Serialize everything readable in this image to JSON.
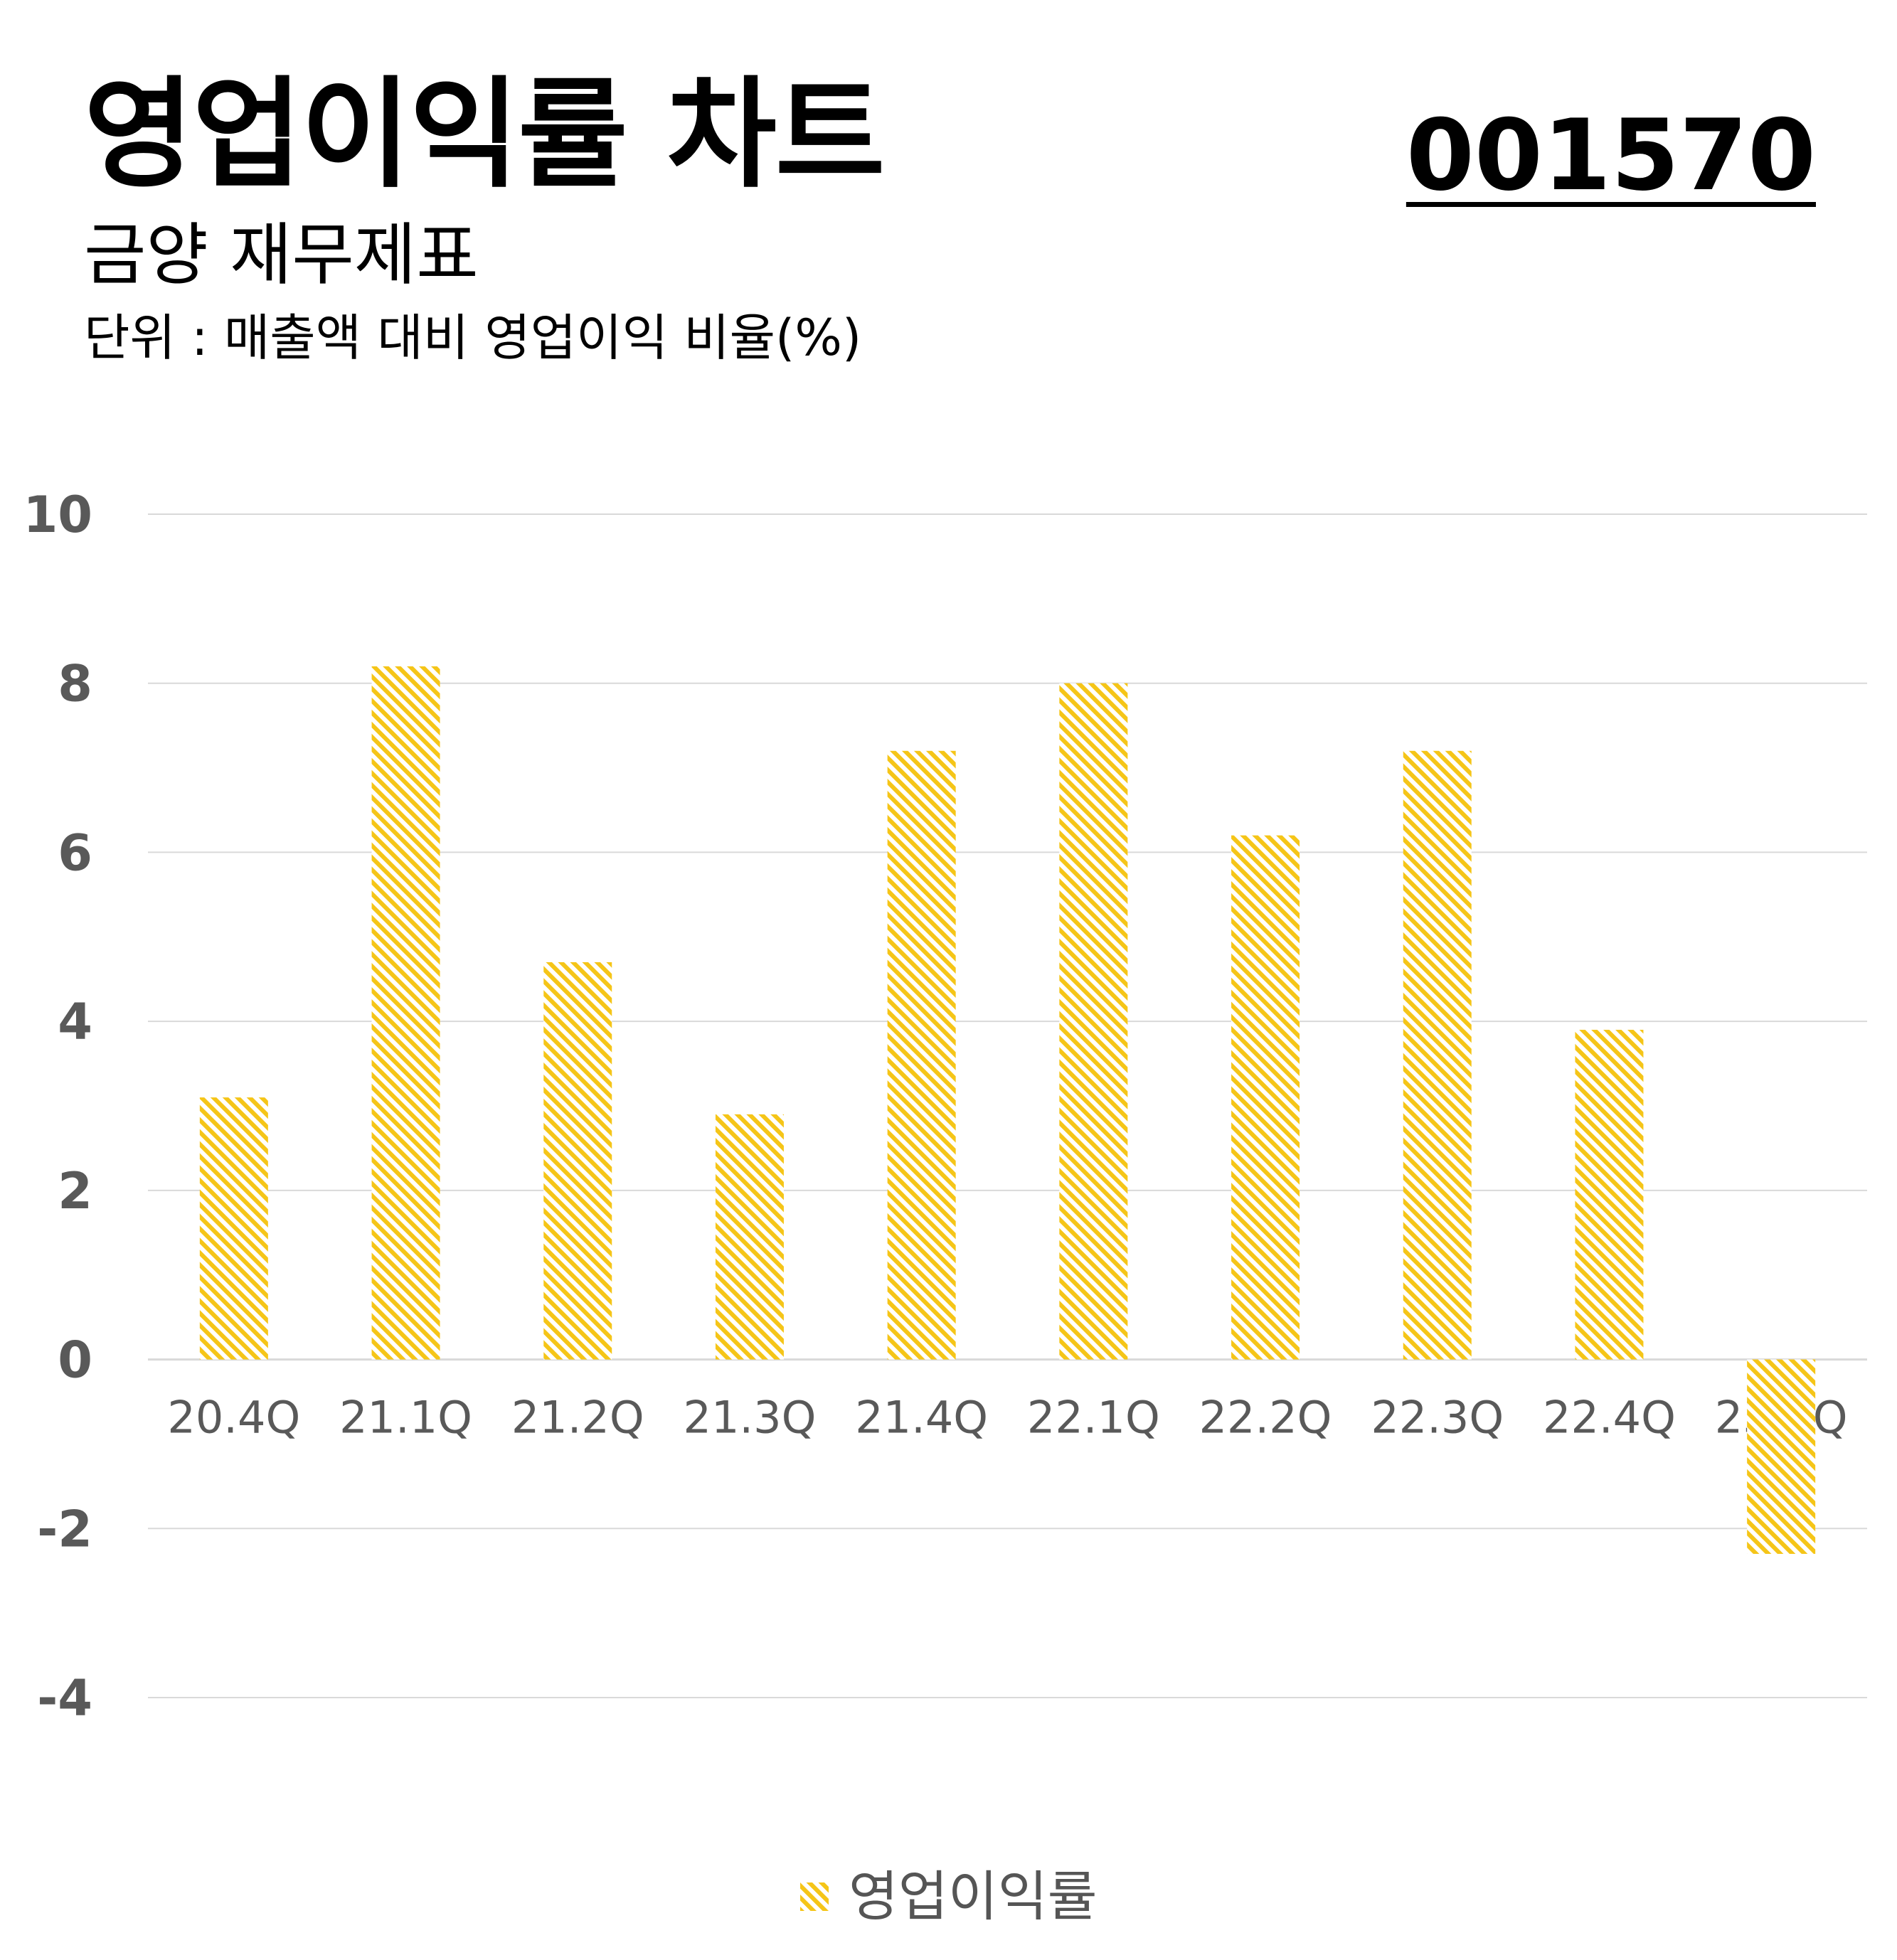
{
  "header": {
    "title": "영업이익률 차트",
    "code": "001570",
    "subtitle": "금양 재무제표",
    "unit": "단위 : 매출액 대비 영업이익 비율(%)"
  },
  "colors": {
    "bar": "#f5c518",
    "grid": "#d9d9d9",
    "tick_text": "#595959",
    "title_text": "#000000"
  },
  "chart_data": {
    "type": "bar",
    "categories": [
      "20.4Q",
      "21.1Q",
      "21.2Q",
      "21.3Q",
      "21.4Q",
      "22.1Q",
      "22.2Q",
      "22.3Q",
      "22.4Q",
      "23.1Q"
    ],
    "series": [
      {
        "name": "영업이익률",
        "values": [
          3.1,
          8.2,
          4.7,
          2.9,
          7.2,
          8.0,
          6.2,
          7.2,
          3.9,
          -2.3
        ]
      }
    ],
    "ylim": [
      -4,
      10
    ],
    "yticks": [
      "10",
      "8",
      "6",
      "4",
      "2",
      "0",
      "-2",
      "-4"
    ],
    "ytick_values": [
      10,
      8,
      6,
      4,
      2,
      0,
      -2,
      -4
    ],
    "grid": true,
    "bar_fill": "diagonal-hatch",
    "legend_position": "bottom-center"
  }
}
